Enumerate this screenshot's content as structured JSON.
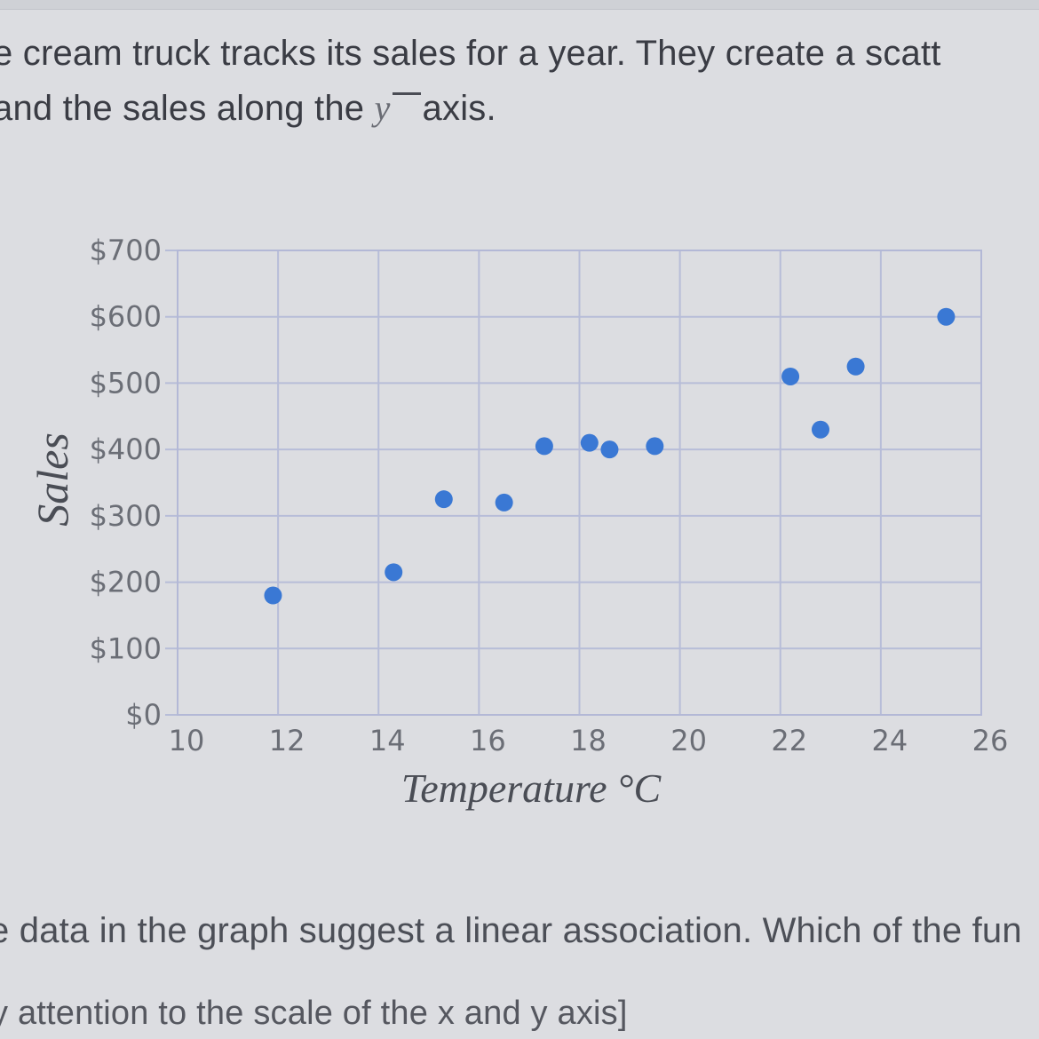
{
  "question": {
    "line1": "e cream truck tracks its sales for a year.  They create a scatt",
    "line2_before": "and the sales along the ",
    "line2_var": "y",
    "line2_after": "axis.",
    "line3": "e data in the graph suggest a linear association. Which of the fun",
    "line4": "y attention to the scale of the x and y axis]"
  },
  "chart_data": {
    "type": "scatter",
    "xlabel": "Temperature °C",
    "ylabel": "Sales",
    "xlim": [
      10,
      26
    ],
    "ylim": [
      0,
      700
    ],
    "x_ticks": [
      10,
      12,
      14,
      16,
      18,
      20,
      22,
      24,
      26
    ],
    "x_tick_labels": [
      "10",
      "12",
      "14",
      "16",
      "18",
      "20",
      "22",
      "24",
      "26"
    ],
    "y_ticks": [
      0,
      100,
      200,
      300,
      400,
      500,
      600,
      700
    ],
    "y_tick_labels": [
      "$0",
      "$100",
      "$200",
      "$300",
      "$400",
      "$500",
      "$600",
      "$700"
    ],
    "grid": true,
    "points": [
      {
        "x": 11.9,
        "y": 180
      },
      {
        "x": 14.3,
        "y": 215
      },
      {
        "x": 15.3,
        "y": 325
      },
      {
        "x": 16.5,
        "y": 320
      },
      {
        "x": 17.3,
        "y": 405
      },
      {
        "x": 18.2,
        "y": 410
      },
      {
        "x": 18.6,
        "y": 400
      },
      {
        "x": 19.5,
        "y": 405
      },
      {
        "x": 22.2,
        "y": 510
      },
      {
        "x": 22.8,
        "y": 430
      },
      {
        "x": 23.5,
        "y": 525
      },
      {
        "x": 25.3,
        "y": 600
      }
    ],
    "colors": {
      "point": "#3a78d4",
      "grid": "#b7bdd8",
      "frame": "#b3b8d6"
    }
  }
}
